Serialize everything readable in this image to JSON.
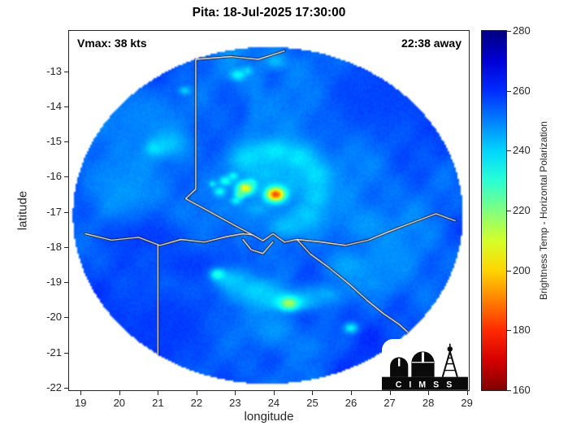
{
  "title": "Pita: 18-Jul-2025 17:30:00",
  "annotations": {
    "vmax": "Vmax: 38 kts",
    "eta": "22:38 away"
  },
  "axes": {
    "xlabel": "longitude",
    "ylabel": "latitude",
    "xlim": [
      18.7,
      29.05
    ],
    "ylim": [
      -22.07,
      -11.85
    ],
    "xticks": [
      19,
      20,
      21,
      22,
      23,
      24,
      25,
      26,
      27,
      28,
      29
    ],
    "yticks": [
      -13,
      -14,
      -15,
      -16,
      -17,
      -18,
      -19,
      -20,
      -21,
      -22
    ],
    "tick_color": "#262626"
  },
  "colorbar": {
    "label": "Brightness Temp - Horizontal Polarization",
    "min": 160,
    "max": 280,
    "ticks": [
      160,
      180,
      200,
      220,
      240,
      260,
      280
    ],
    "stops_bottom_to_top": [
      "#800000",
      "#d50000",
      "#ff2a00",
      "#ff8000",
      "#ffd500",
      "#d5ff2a",
      "#80ff80",
      "#2affd5",
      "#00d5ff",
      "#0080ff",
      "#002bff",
      "#0000d5",
      "#000080"
    ]
  },
  "logo": {
    "text": "C I M S S"
  },
  "chart_data": {
    "type": "heatmap",
    "title": "Pita: 18-Jul-2025 17:30:00",
    "xlabel": "longitude",
    "ylabel": "latitude",
    "xlim": [
      18.7,
      29.05
    ],
    "ylim": [
      -22.07,
      -11.85
    ],
    "value_label": "Brightness Temp - Horizontal Polarization",
    "value_range": [
      160,
      280
    ],
    "colormap": "jet-reversed (160=dark red, 280=dark blue)",
    "base_temp": 252.5,
    "disk": {
      "center_lon": 23.85,
      "center_lat": -17.1,
      "rx_deg": 5.05,
      "ry_deg": 4.79
    },
    "features_note": "each feature = [lon, lat, sigma_lon_deg, sigma_lat_deg, brightness_temp_K]",
    "features": [
      [
        23.9,
        -16.2,
        1.35,
        1.05,
        249
      ],
      [
        20.6,
        -14.3,
        0.85,
        0.6,
        249
      ],
      [
        19.95,
        -15.95,
        0.5,
        0.4,
        249
      ],
      [
        20.25,
        -16.45,
        0.4,
        0.33,
        247
      ],
      [
        20.7,
        -17.7,
        0.9,
        0.38,
        258
      ],
      [
        21.8,
        -18.5,
        0.85,
        0.38,
        258
      ],
      [
        21.0,
        -20.2,
        1.2,
        0.85,
        258
      ],
      [
        26.9,
        -13.8,
        1.2,
        0.85,
        257
      ],
      [
        23.55,
        -13.8,
        0.14,
        0.8,
        249
      ],
      [
        23.35,
        -15.6,
        0.13,
        0.8,
        249
      ],
      [
        23.2,
        -17.2,
        0.13,
        0.8,
        250
      ],
      [
        25.95,
        -18.55,
        0.45,
        0.33,
        245
      ],
      [
        26.4,
        -17.35,
        0.5,
        0.3,
        247
      ],
      [
        27.1,
        -18.25,
        0.4,
        0.3,
        248
      ],
      [
        26.6,
        -19.0,
        0.4,
        0.28,
        248
      ],
      [
        24.0,
        -20.35,
        0.5,
        0.33,
        247
      ],
      [
        24.9,
        -20.85,
        0.4,
        0.28,
        250
      ],
      [
        23.35,
        -15.5,
        0.32,
        0.26,
        238
      ],
      [
        24.0,
        -15.3,
        0.38,
        0.26,
        237
      ],
      [
        24.65,
        -15.5,
        0.3,
        0.28,
        237
      ],
      [
        25.05,
        -15.95,
        0.28,
        0.3,
        238
      ],
      [
        25.1,
        -16.55,
        0.24,
        0.3,
        240
      ],
      [
        24.85,
        -17.1,
        0.3,
        0.26,
        241
      ],
      [
        24.35,
        -17.4,
        0.38,
        0.22,
        242
      ],
      [
        24.5,
        -16.15,
        0.22,
        0.22,
        243
      ],
      [
        23.8,
        -15.9,
        0.4,
        0.3,
        242
      ],
      [
        23.6,
        -16.9,
        0.25,
        0.18,
        245
      ],
      [
        22.9,
        -18.95,
        0.3,
        0.24,
        241
      ],
      [
        23.55,
        -19.25,
        0.4,
        0.28,
        240
      ],
      [
        24.1,
        -19.5,
        0.33,
        0.24,
        239
      ],
      [
        24.8,
        -19.5,
        0.3,
        0.2,
        241
      ],
      [
        25.35,
        -19.35,
        0.35,
        0.24,
        245
      ],
      [
        21.3,
        -15.05,
        0.33,
        0.28,
        242
      ],
      [
        20.92,
        -15.18,
        0.18,
        0.16,
        238
      ],
      [
        21.7,
        -13.55,
        0.1,
        0.08,
        240
      ],
      [
        23.08,
        -13.1,
        0.14,
        0.11,
        234
      ],
      [
        23.32,
        -12.98,
        0.09,
        0.09,
        239
      ],
      [
        24.05,
        -12.72,
        0.2,
        0.14,
        243
      ],
      [
        22.75,
        -16.12,
        0.11,
        0.09,
        231
      ],
      [
        22.95,
        -15.98,
        0.09,
        0.08,
        234
      ],
      [
        22.6,
        -16.42,
        0.1,
        0.09,
        233
      ],
      [
        23.02,
        -16.68,
        0.09,
        0.08,
        235
      ],
      [
        22.42,
        -16.2,
        0.07,
        0.07,
        237
      ],
      [
        22.55,
        -18.78,
        0.13,
        0.11,
        230
      ],
      [
        26.0,
        -20.3,
        0.12,
        0.1,
        235
      ],
      [
        24.4,
        -19.6,
        0.17,
        0.13,
        214
      ],
      [
        23.27,
        -16.32,
        0.15,
        0.12,
        203
      ],
      [
        23.13,
        -16.5,
        0.09,
        0.08,
        222
      ],
      [
        23.42,
        -16.18,
        0.08,
        0.07,
        228
      ],
      [
        24.05,
        -16.5,
        0.17,
        0.14,
        183
      ]
    ],
    "borders_note": "white coastline/border polylines as [lon,lat] points",
    "borders": [
      [
        [
          21.98,
          -12.4
        ],
        [
          21.98,
          -16.35
        ],
        [
          21.72,
          -16.62
        ],
        [
          22.35,
          -17.0
        ],
        [
          23.05,
          -17.42
        ],
        [
          23.45,
          -17.65
        ]
      ],
      [
        [
          21.98,
          -12.66
        ],
        [
          22.9,
          -12.58
        ],
        [
          23.6,
          -12.66
        ],
        [
          24.28,
          -12.42
        ]
      ],
      [
        [
          19.12,
          -17.62
        ],
        [
          19.8,
          -17.8
        ],
        [
          20.5,
          -17.72
        ],
        [
          21.05,
          -17.95
        ],
        [
          21.6,
          -17.78
        ],
        [
          22.2,
          -17.86
        ],
        [
          22.78,
          -17.7
        ],
        [
          23.2,
          -17.62
        ],
        [
          23.45,
          -17.65
        ],
        [
          23.72,
          -17.82
        ],
        [
          23.98,
          -17.62
        ],
        [
          24.28,
          -17.86
        ],
        [
          24.6,
          -17.78
        ]
      ],
      [
        [
          24.6,
          -17.78
        ],
        [
          25.2,
          -17.85
        ],
        [
          25.85,
          -17.95
        ],
        [
          26.45,
          -17.8
        ],
        [
          27.0,
          -17.55
        ],
        [
          27.6,
          -17.3
        ],
        [
          28.2,
          -17.05
        ],
        [
          28.7,
          -17.25
        ]
      ],
      [
        [
          24.6,
          -17.78
        ],
        [
          24.95,
          -18.2
        ],
        [
          25.45,
          -18.6
        ],
        [
          25.95,
          -19.05
        ],
        [
          26.4,
          -19.5
        ],
        [
          26.85,
          -19.9
        ],
        [
          27.25,
          -20.2
        ],
        [
          27.6,
          -20.55
        ],
        [
          27.5,
          -20.95
        ],
        [
          27.8,
          -21.3
        ]
      ],
      [
        [
          21.0,
          -17.95
        ],
        [
          21.0,
          -21.97
        ]
      ],
      [
        [
          21.0,
          -21.93
        ],
        [
          23.5,
          -21.96
        ]
      ],
      [
        [
          23.2,
          -17.78
        ],
        [
          23.42,
          -18.08
        ],
        [
          23.72,
          -18.18
        ],
        [
          23.98,
          -17.85
        ]
      ]
    ]
  }
}
